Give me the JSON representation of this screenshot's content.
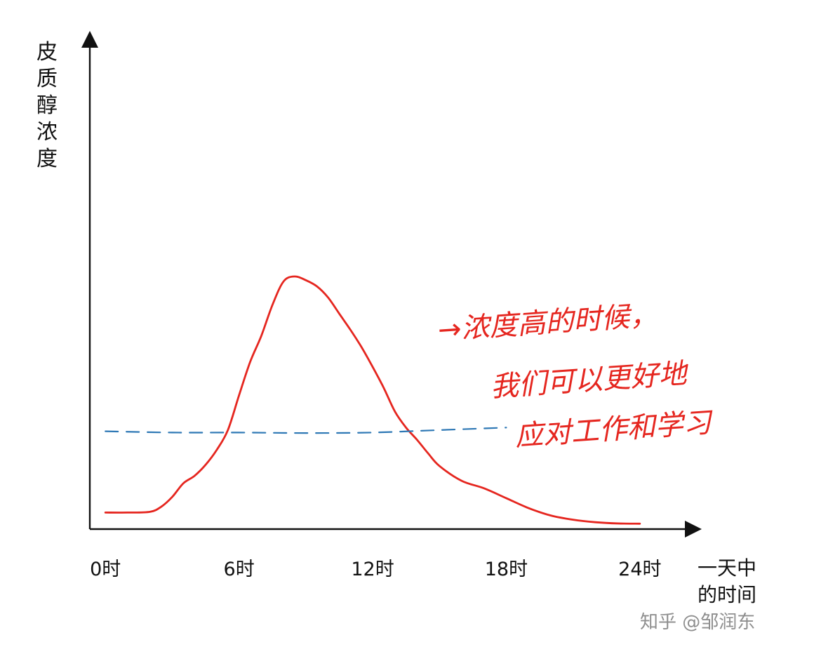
{
  "chart_data": {
    "type": "line",
    "ylabel": "皮质醇浓度",
    "xlabel": [
      "一天中",
      "的时间"
    ],
    "x_ticks": [
      {
        "value": 0,
        "label": "0时"
      },
      {
        "value": 6,
        "label": "6时"
      },
      {
        "value": 12,
        "label": "12时"
      },
      {
        "value": 18,
        "label": "18时"
      },
      {
        "value": 24,
        "label": "24时"
      }
    ],
    "xlim": [
      -0.7,
      26.4
    ],
    "ylim": [
      0,
      100
    ],
    "grid": false,
    "series": [
      {
        "color": "#e5261f",
        "line_style": "solid",
        "x": [
          0,
          1,
          2,
          2.5,
          3,
          3.5,
          4,
          4.5,
          5,
          5.5,
          6,
          6.5,
          7,
          7.5,
          8,
          8.5,
          9,
          9.5,
          10,
          10.5,
          11,
          11.5,
          12,
          12.5,
          13,
          13.5,
          14,
          14.5,
          15,
          16,
          17,
          18,
          19,
          20,
          21,
          22,
          23,
          24
        ],
        "y": [
          4.7,
          4.7,
          5.0,
          7.0,
          11.0,
          16.5,
          19.5,
          24.0,
          30.0,
          38.0,
          52.0,
          65.5,
          76.0,
          88.5,
          98.0,
          100.0,
          98.5,
          96.0,
          91.5,
          85.0,
          78.5,
          71.5,
          63.5,
          55.0,
          45.5,
          39.0,
          34.0,
          28.5,
          23.5,
          17.5,
          14.5,
          10.5,
          6.5,
          3.5,
          1.8,
          0.8,
          0.3,
          0.2
        ]
      },
      {
        "color": "#2e78b5",
        "line_style": "dashed",
        "x": [
          0,
          3,
          6,
          9,
          12,
          15,
          18
        ],
        "y": [
          37.5,
          37.0,
          37.0,
          36.8,
          37.0,
          38.0,
          39.0
        ]
      }
    ],
    "annotation": [
      "→浓度高的时候，",
      "我们可以更好地",
      "应对工作和学习"
    ]
  },
  "watermark": "知乎 @邹润东"
}
